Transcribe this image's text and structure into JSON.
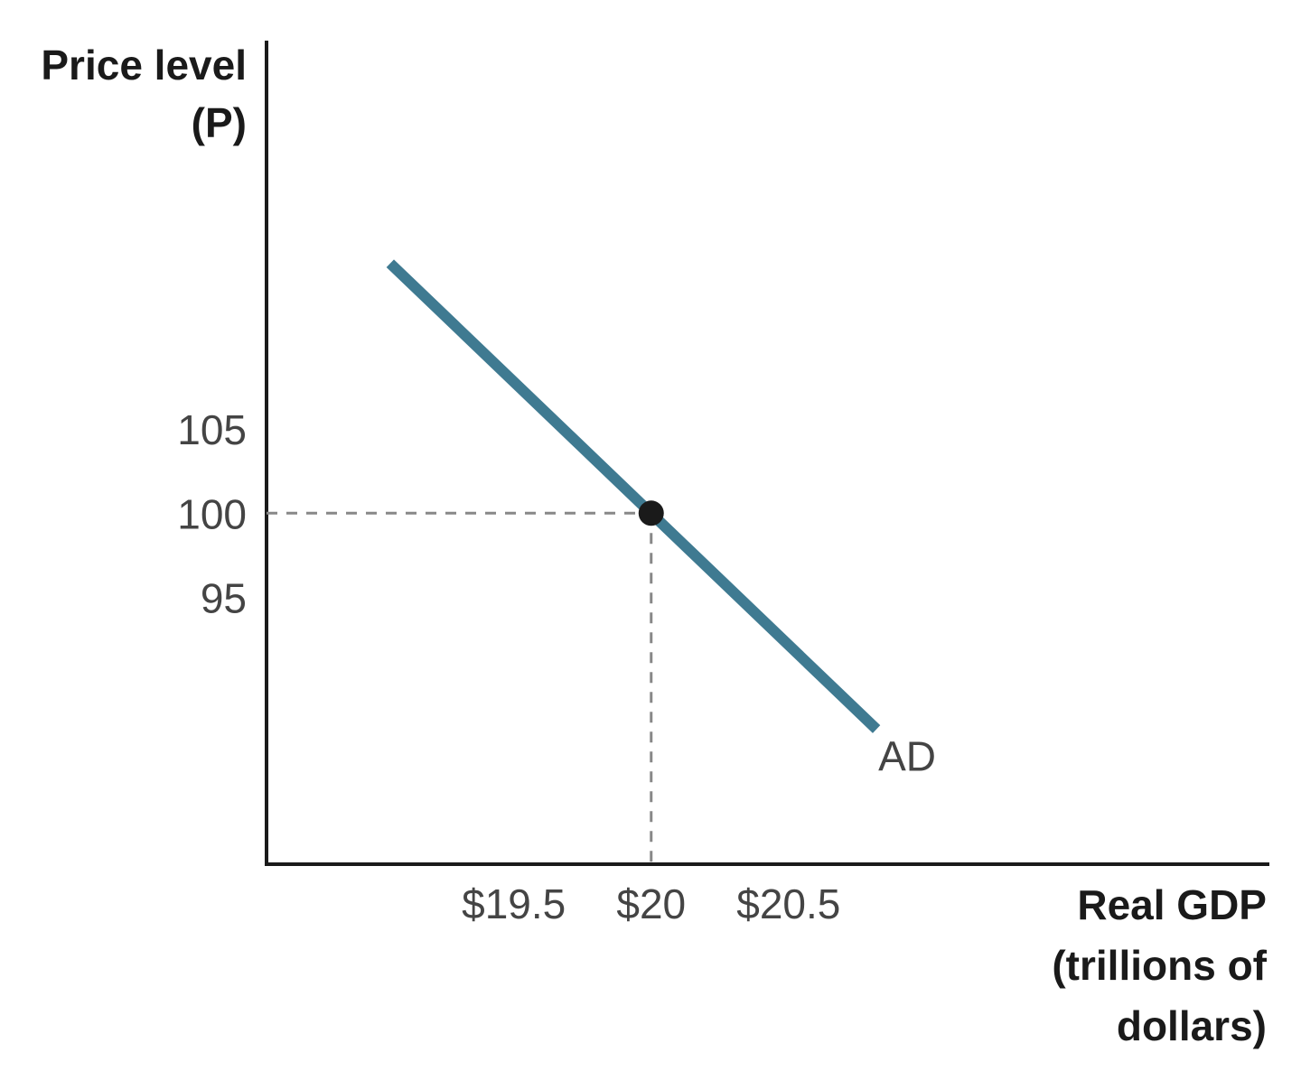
{
  "chart_data": {
    "type": "line",
    "title": "",
    "ylabel_lines": [
      "Price level",
      "(P)"
    ],
    "xlabel_lines": [
      "Real GDP",
      "(trillions of",
      "dollars)"
    ],
    "xlim": [
      18.6,
      22.25
    ],
    "ylim": [
      79.2,
      128
    ],
    "x_ticks": [
      19.5,
      20,
      20.5
    ],
    "x_tick_labels": [
      "$19.5",
      "$20",
      "$20.5"
    ],
    "y_ticks": [
      105,
      100,
      95
    ],
    "y_tick_labels": [
      "105",
      "100",
      "95"
    ],
    "grid": false,
    "series": [
      {
        "name": "AD",
        "x": [
          19.05,
          20.82
        ],
        "y": [
          114.8,
          87.2
        ],
        "color": "#3f7a91"
      }
    ],
    "highlight_point": {
      "x": 20,
      "y": 100,
      "color": "#1a1a1a"
    },
    "guide_lines": {
      "style": "dashed",
      "color": "#888888"
    }
  }
}
